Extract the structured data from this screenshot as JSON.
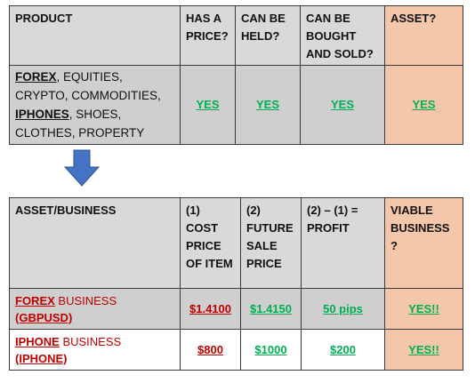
{
  "table1": {
    "headers": [
      "PRODUCT",
      "HAS A PRICE?",
      "CAN BE HELD?",
      "CAN BE BOUGHT AND SOLD?",
      "ASSET?"
    ],
    "product_parts": [
      {
        "text": "FOREX",
        "style": "bold-underline"
      },
      {
        "text": ", EQUITIES, CRYPTO, COMMODITIES, ",
        "style": "plain"
      },
      {
        "text": "IPHONES",
        "style": "bold-underline"
      },
      {
        "text": ", SHOES, CLOTHES, PROPERTY",
        "style": "plain"
      }
    ],
    "values": [
      "YES",
      "YES",
      "YES",
      "YES"
    ]
  },
  "arrow": {
    "icon": "down-arrow-icon",
    "color": "#4472c4"
  },
  "table2": {
    "headers": [
      "ASSET/BUSINESS",
      "(1) COST PRICE OF ITEM",
      "(2) FUTURE SALE PRICE",
      "(2) – (1) = PROFIT",
      "VIABLE BUSINESS ?"
    ],
    "rows": [
      {
        "name_bold": "FOREX",
        "name_rest": " BUSINESS",
        "code": "(GBPUSD)",
        "cost": "$1.4100",
        "sale": "$1.4150",
        "profit": "50 pips",
        "viable": "YES!!"
      },
      {
        "name_bold": "IPHONE",
        "name_rest": " BUSINESS",
        "code": "(IPHONE)",
        "cost": "$800",
        "sale": "$1000",
        "profit": "$200",
        "viable": "YES!!"
      }
    ]
  },
  "colors": {
    "green": "#00b050",
    "red": "#c00000",
    "asset_bg": "#f4c7ab",
    "header_bg": "#d9d9d9"
  }
}
